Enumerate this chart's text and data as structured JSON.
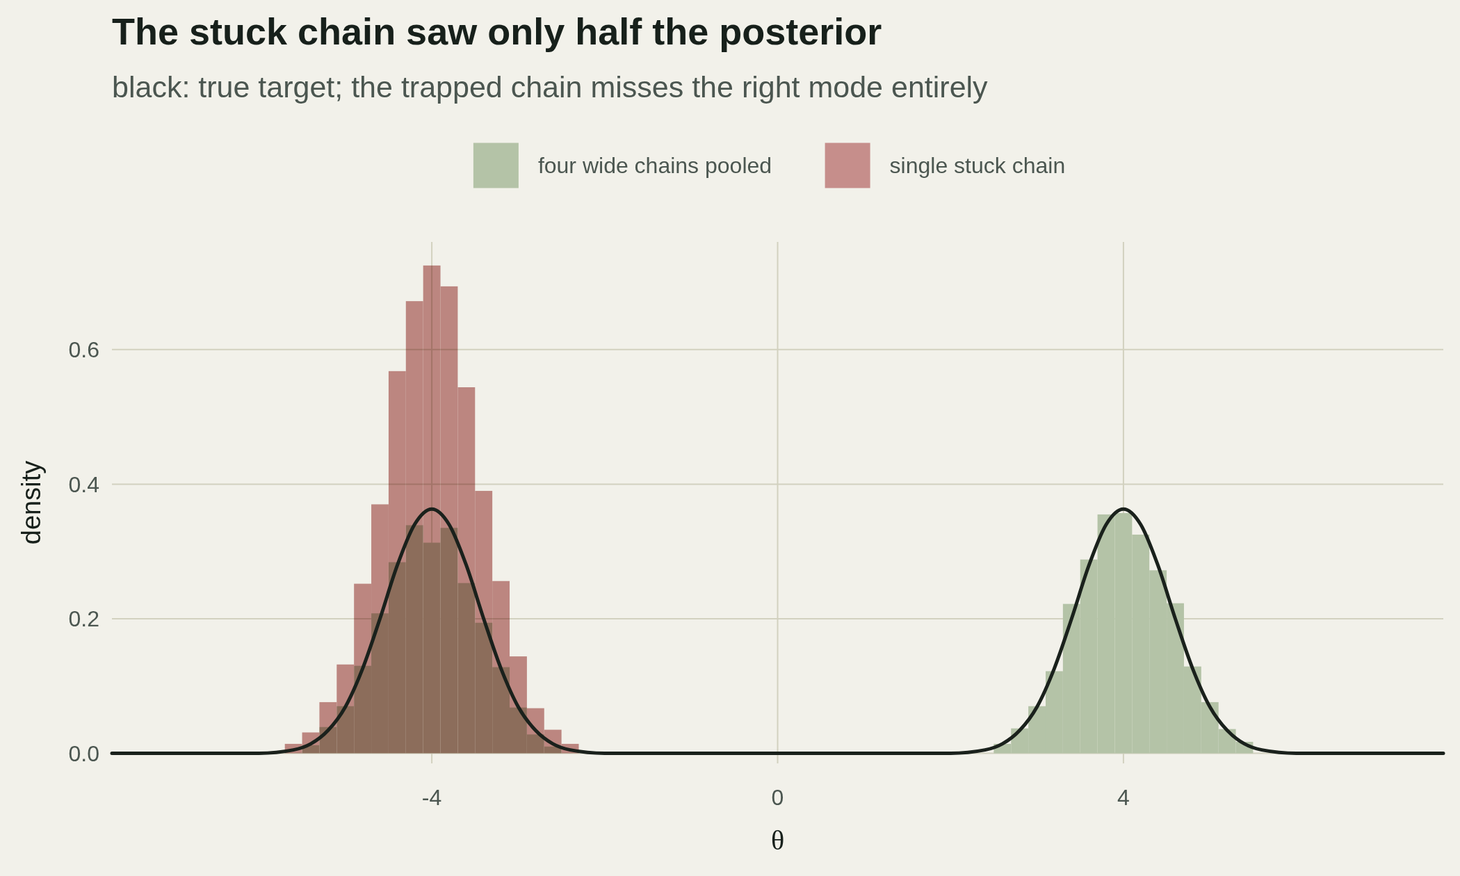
{
  "chart_data": {
    "type": "histogram",
    "title": "The stuck chain saw only half the posterior",
    "subtitle": "black: true target; the trapped chain misses the right mode entirely",
    "xlabel": "θ",
    "ylabel": "density",
    "xlim": [
      -7.7,
      7.7
    ],
    "xticks": [
      -4,
      0,
      4
    ],
    "ylim": [
      -0.015,
      0.76
    ],
    "yticks": [
      {
        "value": 0,
        "label": "0.0"
      },
      0.2,
      0.4,
      0.6
    ],
    "grid": true,
    "legend": "top",
    "series": [
      {
        "name": "four wide chains pooled",
        "color": "#b4c3a7",
        "bins": [
          -5.5,
          -5.3,
          -5.1,
          -4.9,
          -4.7,
          -4.5,
          -4.3,
          -4.1,
          -3.9,
          -3.7,
          -3.5,
          -3.3,
          -3.1,
          -2.9,
          -2.7,
          -2.5,
          -2.3,
          -2.1,
          -1.9,
          -1.7,
          -1.5,
          -1.3,
          -1.1,
          -0.9,
          -0.7,
          -0.5,
          -0.3,
          -0.1,
          0.1,
          0.3,
          0.5,
          0.7,
          0.9,
          1.1,
          1.3,
          1.5,
          1.7,
          1.9,
          2.1,
          2.3,
          2.5,
          2.7,
          2.9,
          3.1,
          3.3,
          3.5,
          3.7,
          3.9,
          4.1,
          4.3,
          4.5,
          4.7,
          4.9,
          5.1,
          5.3,
          5.5
        ],
        "values": [
          0.012,
          0.039,
          0.07,
          0.13,
          0.208,
          0.284,
          0.339,
          0.313,
          0.335,
          0.253,
          0.194,
          0.128,
          0.068,
          0.028,
          0.01,
          null,
          0,
          0,
          0,
          0,
          0,
          0,
          0,
          0,
          0,
          0,
          0,
          0,
          0,
          0,
          0,
          0,
          0,
          0,
          0,
          0,
          0,
          0,
          0,
          null,
          0.014,
          0.037,
          0.07,
          0.122,
          0.222,
          0.288,
          0.355,
          0.357,
          0.325,
          0.272,
          0.223,
          0.129,
          0.076,
          0.036,
          0.017
        ]
      },
      {
        "name": "single stuck chain",
        "color": "#c68e8b",
        "bins": [
          -5.7,
          -5.5,
          -5.3,
          -5.1,
          -4.9,
          -4.7,
          -4.5,
          -4.3,
          -4.1,
          -3.9,
          -3.7,
          -3.5,
          -3.3,
          -3.1,
          -2.9,
          -2.7,
          -2.5,
          -2.3
        ],
        "values": [
          0.014,
          0.031,
          0.076,
          0.132,
          0.252,
          0.37,
          0.568,
          0.672,
          0.725,
          0.694,
          0.544,
          0.39,
          0.256,
          0.144,
          0.067,
          0.035,
          0.014
        ]
      },
      {
        "type": "line",
        "color": "#1a211c",
        "x": [
          -7.7,
          -6,
          -5.6,
          -5.4,
          -5.2,
          -5,
          -4.8,
          -4.6,
          -4.4,
          -4.2,
          -4,
          -3.8,
          -3.6,
          -3.4,
          -3.2,
          -3,
          -2.8,
          -2.6,
          -2.4,
          -2,
          0,
          2,
          2.4,
          2.6,
          2.8,
          3,
          3.2,
          3.4,
          3.6,
          3.8,
          4,
          4.2,
          4.4,
          4.6,
          4.8,
          5,
          5.2,
          5.4,
          5.6,
          6,
          7.7
        ],
        "values": [
          0,
          0,
          0.005,
          0.014,
          0.034,
          0.069,
          0.126,
          0.2,
          0.279,
          0.34,
          0.363,
          0.34,
          0.279,
          0.2,
          0.126,
          0.069,
          0.034,
          0.014,
          0.005,
          0,
          0,
          0,
          0.005,
          0.014,
          0.034,
          0.069,
          0.126,
          0.2,
          0.279,
          0.34,
          0.363,
          0.34,
          0.279,
          0.2,
          0.126,
          0.069,
          0.034,
          0.014,
          0.005,
          0,
          0
        ]
      }
    ]
  }
}
